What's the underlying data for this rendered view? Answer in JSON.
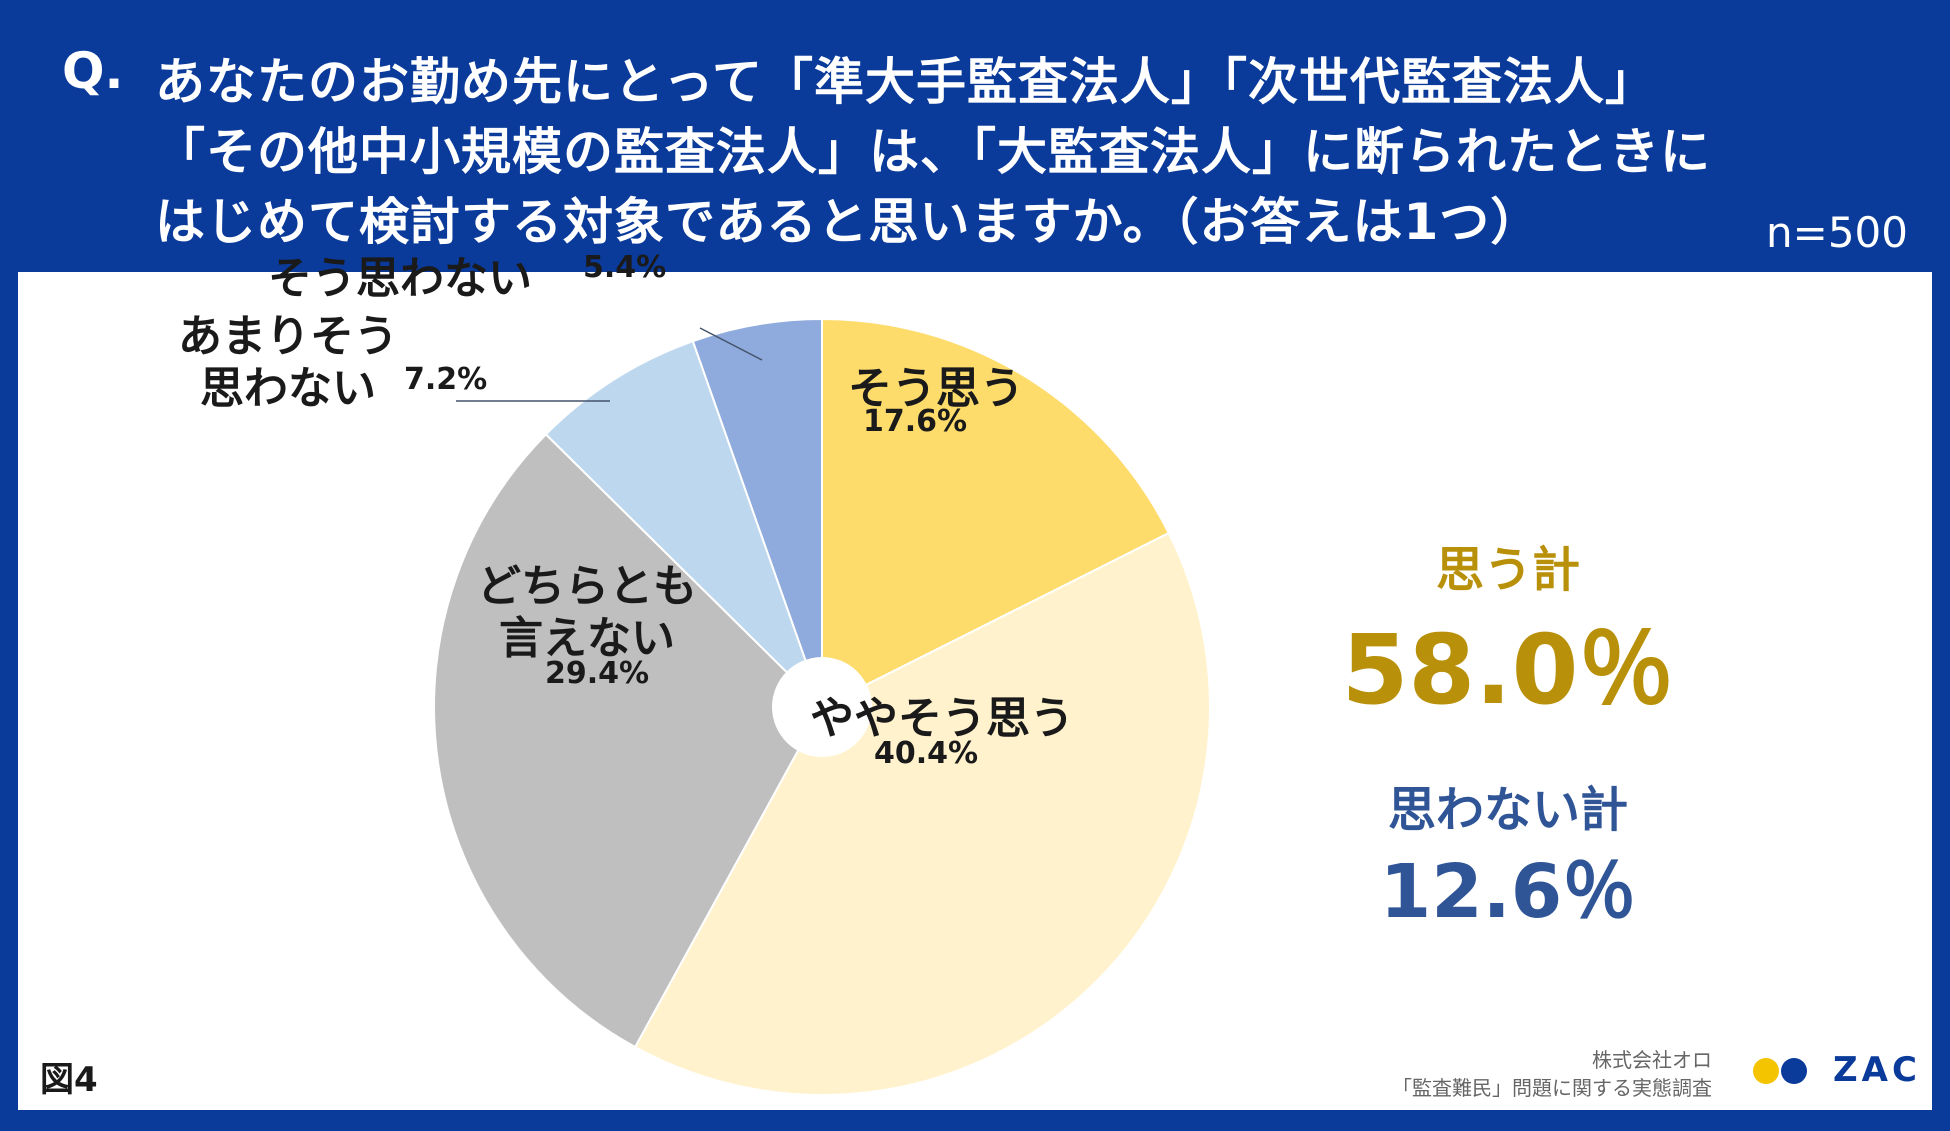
{
  "question": {
    "mark": "Q.",
    "line1": "あなたのお勤め先にとって「準大手監査法人」「次世代監査法人」",
    "line2": "「その他中小規模の監査法人」は、「大監査法人」に断られたときに",
    "line3": "はじめて検討する対象であると思いますか。（お答えは1つ）",
    "n": "n=500"
  },
  "chart_data": {
    "type": "pie",
    "donut": true,
    "start": "top, clockwise",
    "slices": [
      {
        "label": "そう思う",
        "value": 17.6,
        "pct_label": "17.6%",
        "color": "#fddc6c"
      },
      {
        "label": "ややそう思う",
        "value": 40.4,
        "pct_label": "40.4%",
        "color": "#fff2cc"
      },
      {
        "label": "どちらとも言えない",
        "label_lines": [
          "どちらとも",
          "言えない"
        ],
        "value": 29.4,
        "pct_label": "29.4%",
        "color": "#bfbfbf"
      },
      {
        "label": "あまりそう思わない",
        "label_lines": [
          "あまりそう",
          "思わない"
        ],
        "value": 7.2,
        "pct_label": "7.2%",
        "color": "#bdd7ee"
      },
      {
        "label": "そう思わない",
        "value": 5.4,
        "pct_label": "5.4%",
        "color": "#8faadc"
      }
    ]
  },
  "summary": {
    "agree_title": "思う計",
    "agree_value": "58.0％",
    "agree_color": "#b8900a",
    "disagree_title": "思わない計",
    "disagree_value": "12.6％",
    "disagree_color": "#2f5597"
  },
  "footer": {
    "figure": "図4",
    "credit_line1": "株式会社オロ",
    "credit_line2": "「監査難民」問題に関する実態調査",
    "logo_text": "ZAC",
    "logo_colors": [
      "#f5c400",
      "#0a3a9a"
    ]
  }
}
